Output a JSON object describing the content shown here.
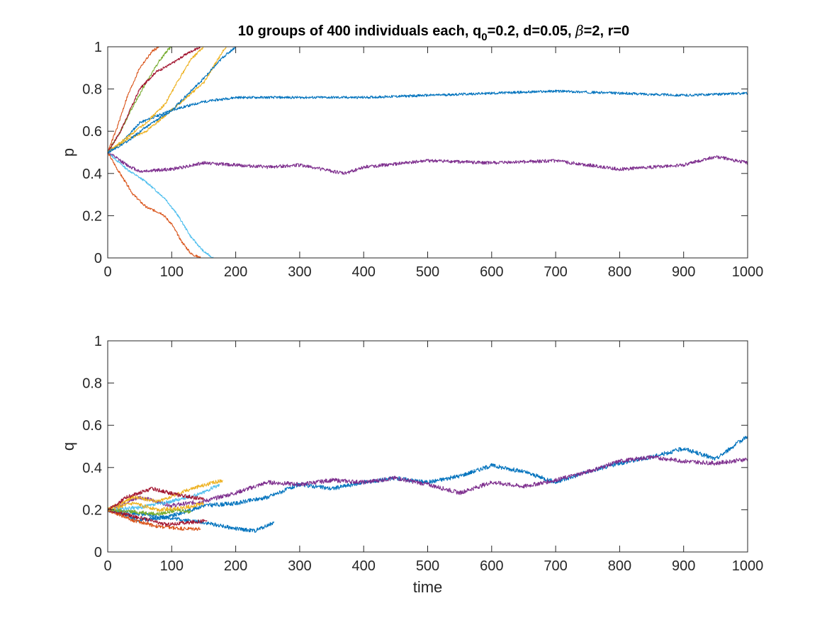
{
  "figure": {
    "title": {
      "main": "10 groups of 400 individuals each, q",
      "subscript": "0",
      "rest1": "=0.2, d=0.05, ",
      "beta": "β",
      "rest2": "=2, r=0"
    }
  },
  "colors": {
    "blue": "#0072BD",
    "orange": "#D95319",
    "yellow": "#EDB120",
    "purple": "#7E2F8E",
    "green": "#77AC30",
    "lightblue": "#4DBEEE",
    "red": "#A2142F"
  },
  "chart_data": [
    {
      "type": "line",
      "title": "10 groups of 400 individuals each, q0=0.2, d=0.05, β=2, r=0",
      "xlabel": "",
      "ylabel": "p",
      "xlim": [
        0,
        1000
      ],
      "ylim": [
        0,
        1
      ],
      "xticks": [
        0,
        100,
        200,
        300,
        400,
        500,
        600,
        700,
        800,
        900,
        1000
      ],
      "yticks": [
        0,
        0.2,
        0.4,
        0.6,
        0.8,
        1
      ],
      "xtick_labels": [
        "0",
        "100",
        "200",
        "300",
        "400",
        "500",
        "600",
        "700",
        "800",
        "900",
        "1000"
      ],
      "ytick_labels": [
        "0",
        "0.2",
        "0.4",
        "0.6",
        "0.8",
        "1"
      ],
      "grid": false,
      "series": [
        {
          "color": "blue",
          "noise": 0.006,
          "seed": 11,
          "points": [
            [
              0,
              0.5
            ],
            [
              20,
              0.54
            ],
            [
              50,
              0.64
            ],
            [
              100,
              0.7
            ],
            [
              150,
              0.74
            ],
            [
              200,
              0.76
            ],
            [
              300,
              0.76
            ],
            [
              400,
              0.76
            ],
            [
              500,
              0.77
            ],
            [
              600,
              0.78
            ],
            [
              700,
              0.79
            ],
            [
              800,
              0.78
            ],
            [
              900,
              0.77
            ],
            [
              1000,
              0.78
            ]
          ]
        },
        {
          "color": "purple",
          "noise": 0.008,
          "seed": 12,
          "points": [
            [
              0,
              0.5
            ],
            [
              30,
              0.44
            ],
            [
              50,
              0.41
            ],
            [
              100,
              0.42
            ],
            [
              150,
              0.45
            ],
            [
              200,
              0.44
            ],
            [
              250,
              0.43
            ],
            [
              300,
              0.44
            ],
            [
              370,
              0.4
            ],
            [
              400,
              0.43
            ],
            [
              500,
              0.46
            ],
            [
              600,
              0.45
            ],
            [
              700,
              0.46
            ],
            [
              800,
              0.42
            ],
            [
              900,
              0.44
            ],
            [
              950,
              0.48
            ],
            [
              1000,
              0.45
            ]
          ]
        },
        {
          "color": "lightblue",
          "noise": 0.005,
          "seed": 13,
          "points": [
            [
              0,
              0.5
            ],
            [
              30,
              0.42
            ],
            [
              60,
              0.36
            ],
            [
              90,
              0.28
            ],
            [
              110,
              0.2
            ],
            [
              130,
              0.1
            ],
            [
              150,
              0.03
            ],
            [
              165,
              0
            ],
            [
              175,
              0
            ]
          ]
        },
        {
          "color": "orange",
          "noise": 0.006,
          "seed": 14,
          "points": [
            [
              0,
              0.5
            ],
            [
              15,
              0.42
            ],
            [
              40,
              0.3
            ],
            [
              60,
              0.24
            ],
            [
              85,
              0.21
            ],
            [
              100,
              0.16
            ],
            [
              115,
              0.08
            ],
            [
              130,
              0.02
            ],
            [
              145,
              0
            ]
          ]
        },
        {
          "color": "green",
          "noise": 0.006,
          "seed": 15,
          "points": [
            [
              0,
              0.5
            ],
            [
              20,
              0.6
            ],
            [
              40,
              0.72
            ],
            [
              60,
              0.83
            ],
            [
              80,
              0.93
            ],
            [
              95,
              0.99
            ],
            [
              100,
              1
            ],
            [
              130,
              1
            ]
          ]
        },
        {
          "color": "orange",
          "noise": 0.006,
          "seed": 16,
          "points": [
            [
              0,
              0.5
            ],
            [
              15,
              0.62
            ],
            [
              30,
              0.76
            ],
            [
              50,
              0.9
            ],
            [
              70,
              0.98
            ],
            [
              80,
              1
            ],
            [
              150,
              1
            ]
          ]
        },
        {
          "color": "red",
          "noise": 0.006,
          "seed": 17,
          "points": [
            [
              0,
              0.5
            ],
            [
              20,
              0.6
            ],
            [
              50,
              0.8
            ],
            [
              75,
              0.88
            ],
            [
              100,
              0.92
            ],
            [
              125,
              0.97
            ],
            [
              145,
              1
            ],
            [
              180,
              1
            ]
          ]
        },
        {
          "color": "yellow",
          "noise": 0.006,
          "seed": 18,
          "points": [
            [
              0,
              0.5
            ],
            [
              30,
              0.57
            ],
            [
              60,
              0.64
            ],
            [
              90,
              0.73
            ],
            [
              110,
              0.84
            ],
            [
              130,
              0.94
            ],
            [
              150,
              1
            ],
            [
              200,
              1
            ]
          ]
        },
        {
          "color": "yellow",
          "noise": 0.006,
          "seed": 19,
          "points": [
            [
              0,
              0.5
            ],
            [
              30,
              0.56
            ],
            [
              60,
              0.6
            ],
            [
              100,
              0.7
            ],
            [
              150,
              0.83
            ],
            [
              170,
              0.93
            ],
            [
              185,
              1
            ],
            [
              230,
              1
            ]
          ]
        },
        {
          "color": "blue",
          "noise": 0.006,
          "seed": 20,
          "points": [
            [
              0,
              0.5
            ],
            [
              30,
              0.55
            ],
            [
              60,
              0.62
            ],
            [
              100,
              0.7
            ],
            [
              150,
              0.85
            ],
            [
              180,
              0.95
            ],
            [
              200,
              1
            ],
            [
              260,
              1
            ]
          ]
        }
      ]
    },
    {
      "type": "line",
      "title": "",
      "xlabel": "time",
      "ylabel": "q",
      "xlim": [
        0,
        1000
      ],
      "ylim": [
        0,
        1
      ],
      "xticks": [
        0,
        100,
        200,
        300,
        400,
        500,
        600,
        700,
        800,
        900,
        1000
      ],
      "yticks": [
        0,
        0.2,
        0.4,
        0.6,
        0.8,
        1
      ],
      "xtick_labels": [
        "0",
        "100",
        "200",
        "300",
        "400",
        "500",
        "600",
        "700",
        "800",
        "900",
        "1000"
      ],
      "ytick_labels": [
        "0",
        "0.2",
        "0.4",
        "0.6",
        "0.8",
        "1"
      ],
      "grid": false,
      "series": [
        {
          "color": "blue",
          "noise": 0.01,
          "seed": 31,
          "points": [
            [
              0,
              0.2
            ],
            [
              50,
              0.15
            ],
            [
              100,
              0.17
            ],
            [
              150,
              0.22
            ],
            [
              200,
              0.23
            ],
            [
              250,
              0.26
            ],
            [
              300,
              0.32
            ],
            [
              350,
              0.3
            ],
            [
              400,
              0.33
            ],
            [
              450,
              0.35
            ],
            [
              500,
              0.33
            ],
            [
              550,
              0.36
            ],
            [
              600,
              0.41
            ],
            [
              650,
              0.38
            ],
            [
              700,
              0.33
            ],
            [
              750,
              0.38
            ],
            [
              800,
              0.42
            ],
            [
              850,
              0.45
            ],
            [
              900,
              0.49
            ],
            [
              950,
              0.44
            ],
            [
              1000,
              0.55
            ]
          ]
        },
        {
          "color": "purple",
          "noise": 0.01,
          "seed": 32,
          "points": [
            [
              0,
              0.2
            ],
            [
              50,
              0.26
            ],
            [
              100,
              0.22
            ],
            [
              150,
              0.24
            ],
            [
              200,
              0.28
            ],
            [
              250,
              0.33
            ],
            [
              300,
              0.32
            ],
            [
              350,
              0.34
            ],
            [
              400,
              0.33
            ],
            [
              450,
              0.35
            ],
            [
              500,
              0.32
            ],
            [
              550,
              0.28
            ],
            [
              600,
              0.33
            ],
            [
              650,
              0.31
            ],
            [
              700,
              0.34
            ],
            [
              750,
              0.38
            ],
            [
              800,
              0.43
            ],
            [
              850,
              0.45
            ],
            [
              900,
              0.43
            ],
            [
              950,
              0.42
            ],
            [
              1000,
              0.44
            ]
          ]
        },
        {
          "color": "blue",
          "noise": 0.009,
          "seed": 33,
          "points": [
            [
              0,
              0.2
            ],
            [
              50,
              0.18
            ],
            [
              100,
              0.16
            ],
            [
              150,
              0.14
            ],
            [
              200,
              0.11
            ],
            [
              230,
              0.1
            ],
            [
              260,
              0.14
            ]
          ]
        },
        {
          "color": "orange",
          "noise": 0.009,
          "seed": 34,
          "points": [
            [
              0,
              0.2
            ],
            [
              40,
              0.15
            ],
            [
              80,
              0.12
            ],
            [
              120,
              0.11
            ],
            [
              145,
              0.11
            ]
          ]
        },
        {
          "color": "red",
          "noise": 0.009,
          "seed": 35,
          "points": [
            [
              0,
              0.2
            ],
            [
              40,
              0.17
            ],
            [
              90,
              0.13
            ],
            [
              130,
              0.14
            ],
            [
              155,
              0.15
            ]
          ]
        },
        {
          "color": "lightblue",
          "noise": 0.009,
          "seed": 36,
          "points": [
            [
              0,
              0.2
            ],
            [
              50,
              0.21
            ],
            [
              100,
              0.24
            ],
            [
              140,
              0.27
            ],
            [
              175,
              0.32
            ]
          ]
        },
        {
          "color": "yellow",
          "noise": 0.009,
          "seed": 37,
          "points": [
            [
              0,
              0.2
            ],
            [
              40,
              0.26
            ],
            [
              80,
              0.24
            ],
            [
              130,
              0.3
            ],
            [
              180,
              0.34
            ]
          ]
        },
        {
          "color": "green",
          "noise": 0.009,
          "seed": 38,
          "points": [
            [
              0,
              0.2
            ],
            [
              40,
              0.19
            ],
            [
              80,
              0.18
            ],
            [
              110,
              0.2
            ],
            [
              130,
              0.19
            ]
          ]
        },
        {
          "color": "yellow",
          "noise": 0.009,
          "seed": 39,
          "points": [
            [
              0,
              0.2
            ],
            [
              40,
              0.23
            ],
            [
              80,
              0.2
            ],
            [
              120,
              0.21
            ],
            [
              150,
              0.23
            ]
          ]
        },
        {
          "color": "red",
          "noise": 0.009,
          "seed": 40,
          "points": [
            [
              0,
              0.2
            ],
            [
              30,
              0.26
            ],
            [
              70,
              0.3
            ],
            [
              110,
              0.27
            ],
            [
              150,
              0.25
            ]
          ]
        }
      ]
    }
  ]
}
